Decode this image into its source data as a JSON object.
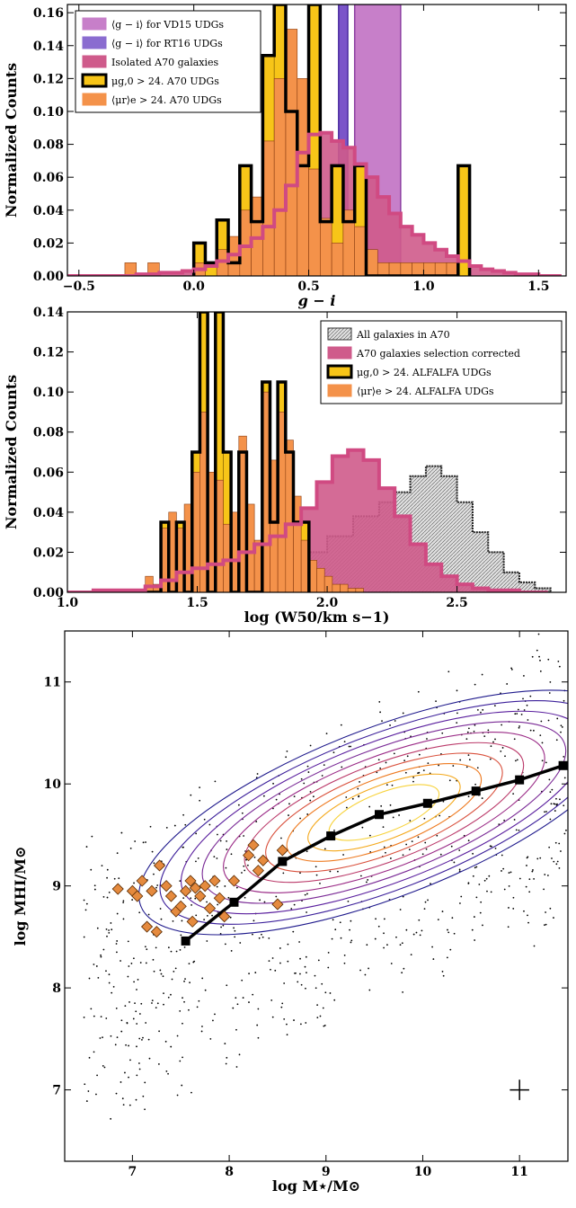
{
  "chart_data": [
    {
      "type": "bar",
      "panel": "top",
      "xlabel": "g − i",
      "ylabel": "Normalized Counts",
      "xlim": [
        -0.55,
        1.62
      ],
      "ylim": [
        0.0,
        0.165
      ],
      "xticks": [
        "−0.5",
        "0.0",
        "0.5",
        "1.0",
        "1.5"
      ],
      "yticks": [
        "0.00",
        "0.02",
        "0.04",
        "0.06",
        "0.08",
        "0.10",
        "0.12",
        "0.14",
        "0.16"
      ],
      "legend_position": "top-left",
      "legend": [
        "⟨g − i⟩ for VD15 UDGs",
        "⟨g − i⟩ for RT16 UDGs",
        "Isolated A70 galaxies",
        "μg,0 > 24. A70 UDGs",
        "⟨μr⟩e > 24. A70 UDGs"
      ],
      "bands": [
        {
          "name": "⟨g − i⟩ for VD15 UDGs",
          "x0": 0.7,
          "x1": 0.9,
          "color": "#c77fc9"
        },
        {
          "name": "⟨g − i⟩ for RT16 UDGs",
          "x0": 0.63,
          "x1": 0.67,
          "color": "#7b55c9"
        }
      ],
      "bin_width": 0.05,
      "series": [
        {
          "name": "⟨μr⟩e > 24. A70 UDGs",
          "color": "#f4924a",
          "x": [
            -0.3,
            -0.2,
            0.0,
            0.1,
            0.15,
            0.2,
            0.25,
            0.3,
            0.35,
            0.4,
            0.45,
            0.5,
            0.55,
            0.6,
            0.65,
            0.7,
            0.75,
            0.8,
            0.85,
            0.9,
            0.95,
            1.0,
            1.05,
            1.1,
            1.15
          ],
          "values": [
            0.008,
            0.008,
            0.008,
            0.016,
            0.024,
            0.04,
            0.048,
            0.082,
            0.12,
            0.15,
            0.12,
            0.065,
            0.035,
            0.02,
            0.04,
            0.03,
            0.016,
            0.008,
            0.008,
            0.008,
            0.008,
            0.008,
            0.008,
            0.008,
            0.0
          ]
        },
        {
          "name": "μg,0 > 24. A70 UDGs",
          "color": "#f7c518",
          "x": [
            0.0,
            0.05,
            0.1,
            0.15,
            0.2,
            0.25,
            0.3,
            0.35,
            0.4,
            0.45,
            0.5,
            0.55,
            0.6,
            0.65,
            0.7,
            0.75,
            0.8,
            0.85,
            0.9,
            0.95,
            1.0,
            1.05,
            1.1,
            1.15
          ],
          "values": [
            0.02,
            0.008,
            0.034,
            0.008,
            0.067,
            0.033,
            0.134,
            0.165,
            0.1,
            0.067,
            0.165,
            0.033,
            0.067,
            0.033,
            0.067,
            0.0,
            0.0,
            0.0,
            0.0,
            0.0,
            0.0,
            0.0,
            0.0,
            0.067
          ]
        },
        {
          "name": "Isolated A70 galaxies",
          "color": "#d45a8a",
          "x": [
            -0.55,
            -0.45,
            -0.35,
            -0.25,
            -0.15,
            -0.05,
            0.0,
            0.05,
            0.1,
            0.15,
            0.2,
            0.25,
            0.3,
            0.35,
            0.4,
            0.45,
            0.5,
            0.55,
            0.6,
            0.65,
            0.7,
            0.75,
            0.8,
            0.85,
            0.9,
            0.95,
            1.0,
            1.05,
            1.1,
            1.15,
            1.2,
            1.25,
            1.3,
            1.35,
            1.4,
            1.45,
            1.5,
            1.55
          ],
          "values": [
            0.0,
            0.0,
            0.0,
            0.001,
            0.002,
            0.003,
            0.004,
            0.006,
            0.009,
            0.013,
            0.018,
            0.023,
            0.03,
            0.04,
            0.055,
            0.075,
            0.086,
            0.087,
            0.082,
            0.078,
            0.068,
            0.06,
            0.048,
            0.038,
            0.03,
            0.025,
            0.02,
            0.016,
            0.012,
            0.009,
            0.006,
            0.004,
            0.003,
            0.002,
            0.001,
            0.001,
            0.0,
            0.0
          ]
        }
      ]
    },
    {
      "type": "bar",
      "panel": "middle",
      "xlabel": "log (W50/km s−1)",
      "ylabel": "Normalized Counts",
      "xlim": [
        1.0,
        2.92
      ],
      "ylim": [
        0.0,
        0.14
      ],
      "xticks": [
        "1.0",
        "1.5",
        "2.0",
        "2.5"
      ],
      "yticks": [
        "0.00",
        "0.02",
        "0.04",
        "0.06",
        "0.08",
        "0.10",
        "0.12",
        "0.14"
      ],
      "legend_position": "top-right",
      "legend": [
        "All galaxies in A70",
        "A70 galaxies selection corrected",
        "μg,0 > 24. ALFALFA UDGs",
        "⟨μr⟩e > 24. ALFALFA UDGs"
      ],
      "bin_width": 0.03,
      "series": [
        {
          "name": "⟨μr⟩e > 24. ALFALFA UDGs",
          "color": "#f4924a",
          "x": [
            1.3,
            1.33,
            1.36,
            1.39,
            1.42,
            1.45,
            1.48,
            1.51,
            1.54,
            1.57,
            1.6,
            1.63,
            1.66,
            1.69,
            1.72,
            1.75,
            1.78,
            1.81,
            1.84,
            1.87,
            1.9,
            1.93,
            1.96,
            1.99,
            2.02,
            2.05,
            2.08,
            2.11
          ],
          "values": [
            0.008,
            0.004,
            0.032,
            0.04,
            0.032,
            0.044,
            0.06,
            0.09,
            0.06,
            0.056,
            0.034,
            0.04,
            0.078,
            0.044,
            0.026,
            0.1,
            0.066,
            0.09,
            0.076,
            0.048,
            0.026,
            0.016,
            0.012,
            0.008,
            0.004,
            0.004,
            0.002,
            0.002
          ]
        },
        {
          "name": "μg,0 > 24. ALFALFA UDGs",
          "color": "#f7c518",
          "x": [
            1.3,
            1.33,
            1.36,
            1.39,
            1.42,
            1.45,
            1.48,
            1.51,
            1.54,
            1.57,
            1.6,
            1.63,
            1.66,
            1.69,
            1.72,
            1.75,
            1.78,
            1.81,
            1.84,
            1.87,
            1.9
          ],
          "values": [
            0.0,
            0.0,
            0.035,
            0.0,
            0.035,
            0.0,
            0.07,
            0.14,
            0.0,
            0.14,
            0.07,
            0.0,
            0.07,
            0.0,
            0.0,
            0.105,
            0.035,
            0.105,
            0.07,
            0.035,
            0.035
          ]
        },
        {
          "name": "A70 galaxies selection corrected",
          "color": "#d45a8a",
          "x": [
            1.0,
            1.1,
            1.2,
            1.3,
            1.36,
            1.42,
            1.48,
            1.54,
            1.6,
            1.66,
            1.72,
            1.78,
            1.84,
            1.9,
            1.96,
            2.02,
            2.08,
            2.14,
            2.2,
            2.26,
            2.32,
            2.38,
            2.44,
            2.5,
            2.56,
            2.62,
            2.68,
            2.74,
            2.8
          ],
          "values": [
            0.0,
            0.001,
            0.001,
            0.003,
            0.006,
            0.01,
            0.012,
            0.014,
            0.016,
            0.02,
            0.024,
            0.028,
            0.034,
            0.042,
            0.055,
            0.068,
            0.071,
            0.066,
            0.052,
            0.038,
            0.024,
            0.014,
            0.008,
            0.004,
            0.002,
            0.001,
            0.001,
            0.0,
            0.0
          ]
        },
        {
          "name": "All galaxies in A70",
          "color": "#d9d9d9",
          "x": [
            1.3,
            1.4,
            1.5,
            1.6,
            1.7,
            1.8,
            1.9,
            2.0,
            2.1,
            2.2,
            2.26,
            2.32,
            2.38,
            2.44,
            2.5,
            2.56,
            2.62,
            2.68,
            2.74,
            2.8
          ],
          "values": [
            0.002,
            0.005,
            0.008,
            0.01,
            0.012,
            0.015,
            0.02,
            0.028,
            0.038,
            0.045,
            0.05,
            0.058,
            0.063,
            0.058,
            0.045,
            0.03,
            0.02,
            0.01,
            0.005,
            0.002
          ]
        }
      ]
    },
    {
      "type": "scatter",
      "panel": "bottom",
      "xlabel": "log M⋆/M⊙",
      "ylabel": "log MHI/M⊙",
      "xlim": [
        6.3,
        11.5
      ],
      "ylim": [
        6.3,
        11.5
      ],
      "xticks": [
        "7",
        "8",
        "9",
        "10",
        "11"
      ],
      "yticks": [
        "7",
        "8",
        "9",
        "10",
        "11"
      ],
      "grid": false,
      "series": [
        {
          "name": "median",
          "color": "#000000",
          "x": [
            7.55,
            8.05,
            8.55,
            9.05,
            9.55,
            10.05,
            10.55,
            11.0,
            11.45
          ],
          "y": [
            8.46,
            8.84,
            9.24,
            9.49,
            9.7,
            9.81,
            9.93,
            10.04,
            10.18
          ]
        },
        {
          "name": "UDGs",
          "color": "#e58a3e",
          "x": [
            6.85,
            7.0,
            7.05,
            7.1,
            7.15,
            7.2,
            7.25,
            7.28,
            7.35,
            7.4,
            7.45,
            7.5,
            7.55,
            7.6,
            7.62,
            7.65,
            7.7,
            7.75,
            7.8,
            7.85,
            7.9,
            7.95,
            8.05,
            8.2,
            8.25,
            8.3,
            8.35,
            8.5,
            8.55
          ],
          "y": [
            8.97,
            8.95,
            8.9,
            9.05,
            8.6,
            8.95,
            8.55,
            9.2,
            9.0,
            8.9,
            8.75,
            8.8,
            8.95,
            9.05,
            8.65,
            8.98,
            8.9,
            9.0,
            8.78,
            9.05,
            8.88,
            8.7,
            9.05,
            9.3,
            9.4,
            9.15,
            9.25,
            8.82,
            9.35
          ]
        }
      ],
      "error_bar": {
        "x": 11.0,
        "y": 7.0,
        "xerr": 0.1,
        "yerr": 0.1
      }
    }
  ]
}
